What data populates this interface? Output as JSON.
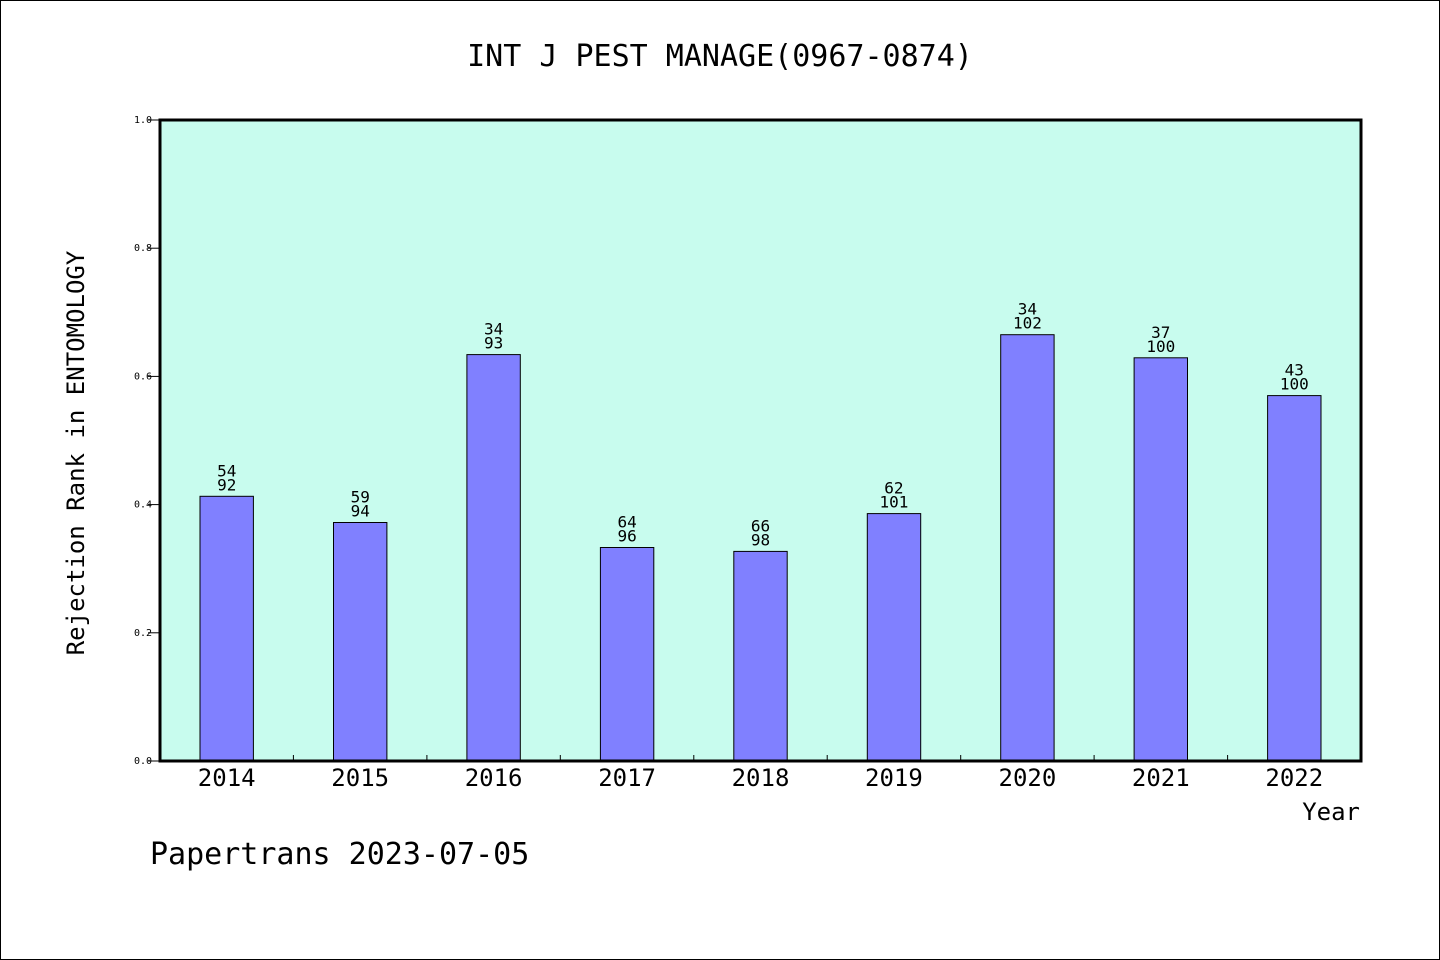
{
  "chart_data": {
    "type": "bar",
    "title": "INT J PEST MANAGE(0967-0874)",
    "xlabel": "Year",
    "ylabel": "Rejection Rank in ENTOMOLOGY",
    "ylim": [
      0.0,
      1.0
    ],
    "yticks": [
      "0.0",
      "0.2",
      "0.4",
      "0.6",
      "0.8",
      "1.0"
    ],
    "categories": [
      "2014",
      "2015",
      "2016",
      "2017",
      "2018",
      "2019",
      "2020",
      "2021",
      "2022"
    ],
    "values": [
      0.413,
      0.372,
      0.634,
      0.333,
      0.327,
      0.386,
      0.665,
      0.629,
      0.57
    ],
    "labels_top": [
      "54",
      "59",
      "34",
      "64",
      "66",
      "62",
      "34",
      "37",
      "43"
    ],
    "labels_bottom": [
      "92",
      "94",
      "93",
      "96",
      "98",
      "101",
      "102",
      "100",
      "100"
    ],
    "grid": false,
    "colors": {
      "plot_background": "#c8fcee",
      "bar_fill": "#8080ff",
      "bar_stroke": "#000000"
    }
  },
  "footer": "Papertrans 2023-07-05"
}
